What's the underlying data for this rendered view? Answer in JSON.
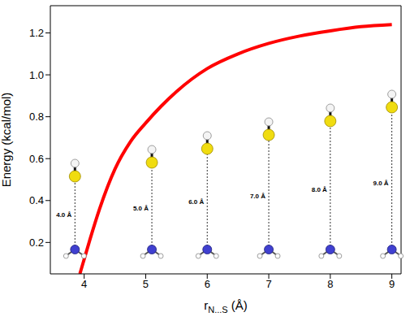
{
  "chart_data": {
    "type": "line",
    "x_label": "rN...S (Å)",
    "y_label": "Energy (kcal/mol)",
    "x": [
      3.93,
      4.0,
      4.1,
      4.25,
      4.5,
      4.75,
      5.0,
      5.25,
      5.5,
      5.75,
      6.0,
      6.5,
      7.0,
      7.5,
      8.0,
      8.5,
      9.0
    ],
    "values": [
      0.05,
      0.12,
      0.22,
      0.36,
      0.55,
      0.68,
      0.77,
      0.85,
      0.92,
      0.98,
      1.03,
      1.1,
      1.15,
      1.185,
      1.21,
      1.23,
      1.24
    ],
    "color": "#ff0000",
    "line_style": "solid",
    "marker": "none",
    "xlim": [
      3.45,
      9.15
    ],
    "ylim": [
      0.05,
      1.33
    ],
    "xticks": [
      4,
      5,
      6,
      7,
      8,
      9
    ],
    "yticks": [
      0.2,
      0.4,
      0.6,
      0.8,
      {
        "value": 1,
        "label": "1.0"
      },
      1.2
    ],
    "grid": false,
    "annotations": [
      {
        "text": "4.0 Å",
        "x": 3.85
      },
      {
        "text": "5.0 Å",
        "x": 5.1
      },
      {
        "text": "6.0 Å",
        "x": 6
      },
      {
        "text": "7.0 Å",
        "x": 7
      },
      {
        "text": "8.0 Å",
        "x": 8
      },
      {
        "text": "9.0 Å",
        "x": 9
      }
    ]
  }
}
